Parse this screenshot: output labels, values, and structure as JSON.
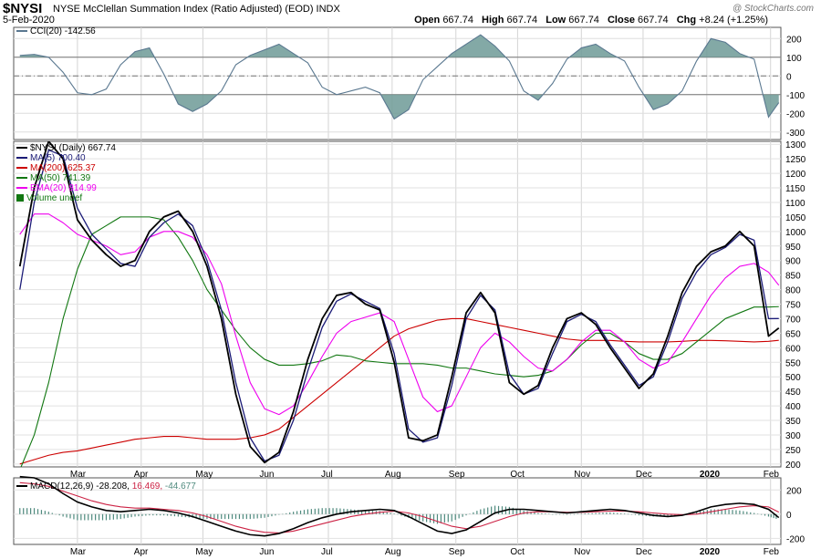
{
  "header": {
    "symbol": "$NYSI",
    "name": "NYSE McClellan Summation Index (Ratio Adjusted) (EOD)  INDX",
    "date": "5-Feb-2020",
    "credit": "@ StockCharts.com",
    "ohlc": [
      {
        "k": "Open",
        "v": "667.74"
      },
      {
        "k": "High",
        "v": "667.74"
      },
      {
        "k": "Low",
        "v": "667.74"
      },
      {
        "k": "Close",
        "v": "667.74"
      },
      {
        "k": "Chg",
        "v": "+8.24 (+1.25%)"
      }
    ]
  },
  "colors": {
    "price": "#000000",
    "ma5": "#1c1c78",
    "ma200": "#cc0000",
    "ma50": "#117711",
    "ema20": "#ee00ee",
    "cci": "#5a7890",
    "cci_fill": "#6d9a97",
    "macd": "#000000",
    "signal": "#cc2244",
    "hist": "#4f8a7e"
  },
  "cci_legend": "CCI(20) -142.56",
  "main_legend": [
    {
      "label": "$NYSI (Daily) 667.74",
      "color": "#000000"
    },
    {
      "label": "MA(5) 700.40",
      "color": "#1c1c78"
    },
    {
      "label": "MA(200) 625.37",
      "color": "#cc0000"
    },
    {
      "label": "MA(50) 741.39",
      "color": "#117711"
    },
    {
      "label": "EMA(20) 814.99",
      "color": "#ee00ee"
    },
    {
      "label": "Volume undef",
      "color": "#117711"
    }
  ],
  "macd_legend": {
    "name": "MACD(12,26,9)",
    "macd": "-28.208",
    "signal": "16.469",
    "hist": "-44.677"
  },
  "chart_data": [
    {
      "type": "line",
      "title": "CCI(20)",
      "ylim": [
        -340,
        260
      ],
      "yticks": [
        200,
        100,
        0,
        -100,
        -200,
        -300
      ],
      "ref_lines": [
        100,
        0,
        -100
      ],
      "x": [
        "2019-02-01",
        "2019-02-08",
        "2019-02-15",
        "2019-02-22",
        "2019-03-01",
        "2019-03-08",
        "2019-03-15",
        "2019-03-22",
        "2019-03-29",
        "2019-04-05",
        "2019-04-12",
        "2019-04-19",
        "2019-04-26",
        "2019-05-03",
        "2019-05-10",
        "2019-05-17",
        "2019-05-24",
        "2019-05-31",
        "2019-06-07",
        "2019-06-14",
        "2019-06-21",
        "2019-06-28",
        "2019-07-05",
        "2019-07-12",
        "2019-07-19",
        "2019-07-26",
        "2019-08-02",
        "2019-08-09",
        "2019-08-16",
        "2019-08-23",
        "2019-08-30",
        "2019-09-06",
        "2019-09-13",
        "2019-09-20",
        "2019-09-27",
        "2019-10-04",
        "2019-10-11",
        "2019-10-18",
        "2019-10-25",
        "2019-11-01",
        "2019-11-08",
        "2019-11-15",
        "2019-11-22",
        "2019-11-29",
        "2019-12-06",
        "2019-12-13",
        "2019-12-20",
        "2019-12-27",
        "2020-01-03",
        "2020-01-10",
        "2020-01-17",
        "2020-01-24",
        "2020-01-31",
        "2020-02-05"
      ],
      "values": [
        110,
        115,
        100,
        20,
        -90,
        -100,
        -70,
        60,
        130,
        150,
        10,
        -150,
        -190,
        -150,
        -80,
        60,
        110,
        140,
        170,
        120,
        70,
        -60,
        -100,
        -80,
        -60,
        -90,
        -230,
        -180,
        -20,
        50,
        120,
        170,
        220,
        160,
        80,
        -80,
        -130,
        -40,
        90,
        150,
        170,
        120,
        80,
        -60,
        -180,
        -150,
        -80,
        80,
        200,
        180,
        120,
        90,
        -220,
        -142.56
      ]
    },
    {
      "type": "line",
      "title": "$NYSI (Daily)",
      "ylim": [
        190,
        1310
      ],
      "yticks": [
        1300,
        1250,
        1200,
        1150,
        1100,
        1050,
        1000,
        950,
        900,
        850,
        800,
        750,
        700,
        650,
        600,
        550,
        500,
        450,
        400,
        350,
        300,
        250,
        200
      ],
      "x_tick_labels": [
        "Mar",
        "Apr",
        "May",
        "Jun",
        "Jul",
        "Aug",
        "Sep",
        "Oct",
        "Nov",
        "Dec",
        "2020",
        "Feb"
      ],
      "x": [
        "2019-02-01",
        "2019-02-08",
        "2019-02-15",
        "2019-02-22",
        "2019-03-01",
        "2019-03-08",
        "2019-03-15",
        "2019-03-22",
        "2019-03-29",
        "2019-04-05",
        "2019-04-12",
        "2019-04-19",
        "2019-04-26",
        "2019-05-03",
        "2019-05-10",
        "2019-05-17",
        "2019-05-24",
        "2019-05-31",
        "2019-06-07",
        "2019-06-14",
        "2019-06-21",
        "2019-06-28",
        "2019-07-05",
        "2019-07-12",
        "2019-07-19",
        "2019-07-26",
        "2019-08-02",
        "2019-08-09",
        "2019-08-16",
        "2019-08-23",
        "2019-08-30",
        "2019-09-06",
        "2019-09-13",
        "2019-09-20",
        "2019-09-27",
        "2019-10-04",
        "2019-10-11",
        "2019-10-18",
        "2019-10-25",
        "2019-11-01",
        "2019-11-08",
        "2019-11-15",
        "2019-11-22",
        "2019-11-29",
        "2019-12-06",
        "2019-12-13",
        "2019-12-20",
        "2019-12-27",
        "2020-01-03",
        "2020-01-10",
        "2020-01-17",
        "2020-01-24",
        "2020-01-31",
        "2020-02-05"
      ],
      "series": [
        {
          "name": "$NYSI",
          "values": [
            880,
            1150,
            1310,
            1250,
            1040,
            970,
            920,
            880,
            900,
            1000,
            1050,
            1070,
            1000,
            880,
            700,
            440,
            260,
            205,
            240,
            380,
            560,
            700,
            780,
            790,
            750,
            730,
            550,
            290,
            280,
            300,
            500,
            720,
            790,
            720,
            480,
            440,
            470,
            600,
            700,
            720,
            680,
            600,
            530,
            460,
            510,
            640,
            790,
            880,
            930,
            950,
            1000,
            950,
            640,
            667.74
          ]
        },
        {
          "name": "MA(5)",
          "values": [
            800,
            1100,
            1280,
            1260,
            1080,
            990,
            940,
            890,
            880,
            980,
            1030,
            1060,
            1020,
            900,
            730,
            480,
            290,
            210,
            230,
            350,
            520,
            670,
            760,
            785,
            760,
            735,
            580,
            320,
            275,
            290,
            470,
            700,
            780,
            730,
            510,
            440,
            460,
            580,
            690,
            715,
            690,
            610,
            540,
            470,
            500,
            620,
            770,
            860,
            920,
            945,
            990,
            970,
            700,
            700.4
          ]
        },
        {
          "name": "MA(200)",
          "values": [
            200,
            215,
            230,
            240,
            245,
            255,
            265,
            275,
            285,
            290,
            295,
            295,
            290,
            285,
            285,
            285,
            290,
            300,
            320,
            360,
            400,
            440,
            480,
            520,
            560,
            600,
            640,
            665,
            680,
            695,
            700,
            700,
            690,
            680,
            670,
            660,
            650,
            640,
            630,
            625,
            625,
            625,
            622,
            620,
            620,
            620,
            622,
            625,
            625,
            624,
            622,
            620,
            622,
            625.37
          ]
        },
        {
          "name": "MA(50)",
          "values": [
            180,
            300,
            480,
            700,
            870,
            990,
            1020,
            1050,
            1050,
            1050,
            1040,
            980,
            900,
            800,
            730,
            660,
            600,
            560,
            540,
            540,
            545,
            555,
            575,
            570,
            555,
            550,
            545,
            545,
            545,
            540,
            530,
            530,
            520,
            510,
            505,
            500,
            505,
            520,
            560,
            610,
            650,
            650,
            620,
            580,
            560,
            560,
            580,
            620,
            660,
            700,
            720,
            740,
            740,
            741.39
          ]
        },
        {
          "name": "EMA(20)",
          "values": [
            990,
            1060,
            1060,
            1030,
            990,
            970,
            950,
            920,
            930,
            980,
            1000,
            1000,
            980,
            920,
            820,
            640,
            480,
            390,
            370,
            400,
            480,
            570,
            650,
            690,
            705,
            720,
            690,
            560,
            430,
            380,
            400,
            500,
            600,
            650,
            620,
            570,
            530,
            520,
            560,
            620,
            660,
            660,
            620,
            560,
            530,
            550,
            620,
            700,
            780,
            840,
            880,
            890,
            860,
            814.99
          ]
        }
      ]
    },
    {
      "type": "line",
      "title": "MACD(12,26,9)",
      "ylim": [
        -250,
        300
      ],
      "yticks": [
        200,
        0,
        -200
      ],
      "series": [
        {
          "name": "MACD",
          "values": [
            310,
            300,
            250,
            170,
            100,
            60,
            30,
            20,
            30,
            40,
            30,
            10,
            -20,
            -60,
            -100,
            -140,
            -170,
            -180,
            -160,
            -120,
            -70,
            -30,
            0,
            20,
            30,
            40,
            30,
            -20,
            -80,
            -140,
            -160,
            -130,
            -60,
            10,
            40,
            40,
            30,
            20,
            10,
            20,
            30,
            40,
            30,
            10,
            -10,
            -20,
            -10,
            20,
            60,
            80,
            90,
            80,
            40,
            -28.208
          ]
        },
        {
          "name": "Signal",
          "values": [
            260,
            250,
            230,
            190,
            150,
            110,
            80,
            60,
            50,
            50,
            40,
            30,
            10,
            -20,
            -60,
            -100,
            -130,
            -150,
            -155,
            -140,
            -110,
            -80,
            -50,
            -20,
            0,
            15,
            25,
            10,
            -20,
            -60,
            -100,
            -120,
            -100,
            -60,
            -20,
            10,
            20,
            20,
            15,
            15,
            20,
            25,
            25,
            20,
            10,
            0,
            -5,
            0,
            20,
            40,
            60,
            70,
            60,
            16.469
          ]
        },
        {
          "name": "Histogram",
          "values": [
            50,
            50,
            20,
            -20,
            -50,
            -50,
            -50,
            -40,
            -20,
            -10,
            -10,
            -20,
            -30,
            -40,
            -40,
            -40,
            -40,
            -30,
            -5,
            20,
            40,
            50,
            50,
            40,
            30,
            25,
            5,
            -30,
            -60,
            -80,
            -60,
            -10,
            40,
            70,
            60,
            30,
            10,
            0,
            -5,
            5,
            10,
            15,
            5,
            -10,
            -20,
            -20,
            -5,
            20,
            40,
            40,
            30,
            10,
            -20,
            -44.677
          ]
        }
      ]
    }
  ]
}
